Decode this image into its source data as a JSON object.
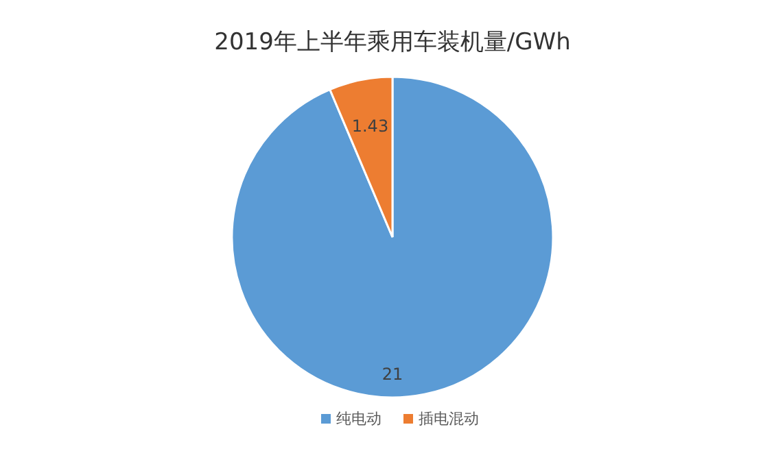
{
  "chart_data": {
    "type": "pie",
    "title": "2019年上半年乘用车装机量/GWh",
    "categories": [
      "纯电动",
      "插电混动"
    ],
    "values": [
      21,
      1.43
    ],
    "colors": [
      "#5b9bd5",
      "#ed7d31"
    ],
    "data_labels": true,
    "legend": "bottom"
  }
}
